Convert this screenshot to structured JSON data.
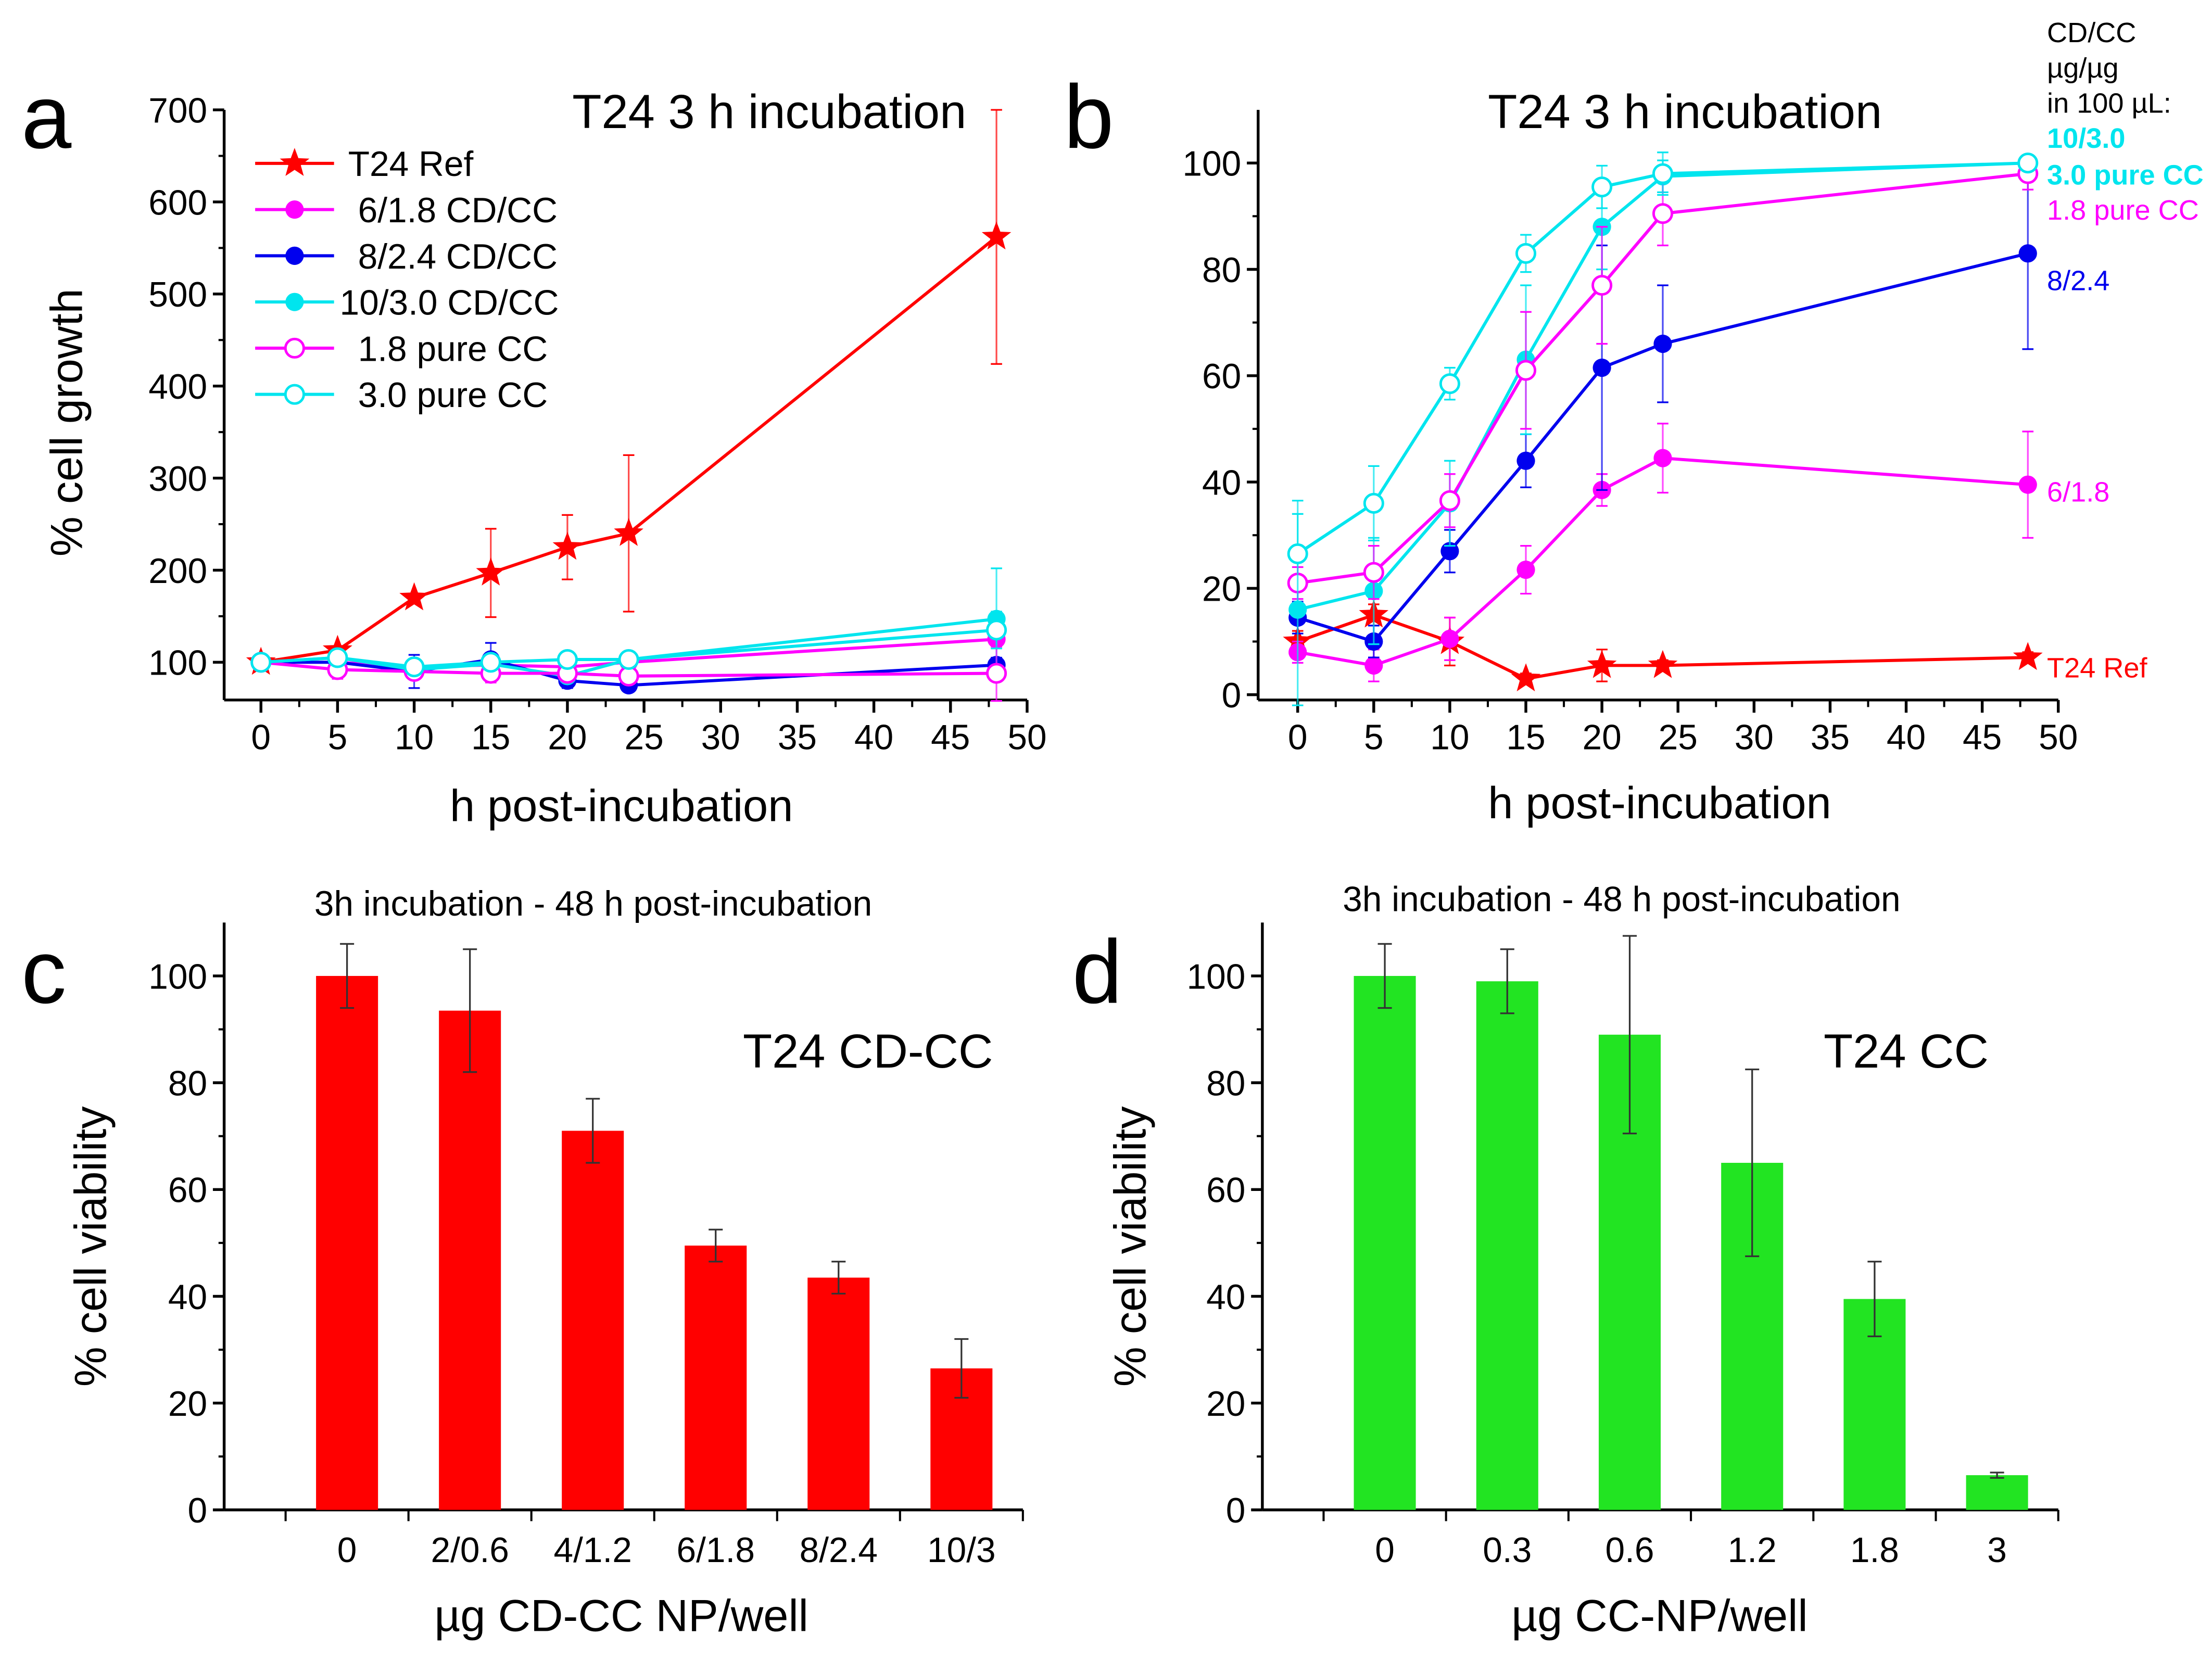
{
  "colors": {
    "ref": "#ff0000",
    "mag": "#ff00ff",
    "blue": "#0000ee",
    "cyan": "#00e5ee",
    "bar_red": "#ff0000",
    "bar_green": "#22e422"
  },
  "chart_data": [
    {
      "panel": "a",
      "type": "line",
      "title": "T24 3 h incubation",
      "xlabel": "h post-incubation",
      "ylabel": "% cell growth",
      "xlim": [
        -2.4,
        50
      ],
      "ylim": [
        59,
        700
      ],
      "xticks": [
        0,
        5,
        10,
        15,
        20,
        25,
        30,
        35,
        40,
        45,
        50
      ],
      "yticks": [
        100,
        200,
        300,
        400,
        500,
        600,
        700
      ],
      "legend": "top-left",
      "x": [
        0,
        5,
        10,
        15,
        20,
        24,
        48
      ],
      "series": [
        {
          "name": "T24 Ref",
          "color": "#ff0000",
          "marker": "star",
          "values": [
            100,
            113,
            170,
            197,
            225,
            240,
            562
          ],
          "errors": [
            0,
            0,
            0,
            48,
            35,
            85,
            138
          ]
        },
        {
          "name": "6/1.8 CD/CC",
          "color": "#ff00ff",
          "marker": "filled-circle",
          "values": [
            100,
            100,
            95,
            97,
            95,
            100,
            125
          ],
          "errors": [
            0,
            5,
            8,
            8,
            6,
            5,
            8
          ]
        },
        {
          "name": "8/2.4 CD/CC",
          "color": "#0000ee",
          "marker": "filled-circle",
          "values": [
            100,
            100,
            90,
            103,
            80,
            75,
            97
          ],
          "errors": [
            0,
            5,
            18,
            18,
            8,
            6,
            8
          ]
        },
        {
          "name": "10/3.0 CD/CC",
          "color": "#00e5ee",
          "marker": "filled-circle",
          "values": [
            100,
            105,
            92,
            98,
            85,
            103,
            147
          ],
          "errors": [
            0,
            6,
            8,
            10,
            6,
            6,
            55
          ]
        },
        {
          "name": "1.8 pure CC",
          "color": "#ff00ff",
          "marker": "open-circle",
          "values": [
            100,
            92,
            90,
            88,
            88,
            85,
            88
          ],
          "errors": [
            0,
            10,
            6,
            10,
            5,
            5,
            30
          ]
        },
        {
          "name": "3.0 pure CC",
          "color": "#00e5ee",
          "marker": "open-circle",
          "values": [
            100,
            105,
            95,
            100,
            103,
            103,
            135
          ],
          "errors": [
            0,
            6,
            6,
            8,
            8,
            6,
            20
          ]
        }
      ]
    },
    {
      "panel": "b",
      "type": "line",
      "title": "T24 3 h incubation",
      "xlabel": "h post-incubation",
      "ylabel": "",
      "xlim": [
        -2.6,
        50
      ],
      "ylim": [
        -1,
        110
      ],
      "xticks": [
        0,
        5,
        10,
        15,
        20,
        25,
        30,
        35,
        40,
        45,
        50
      ],
      "yticks": [
        0,
        20,
        40,
        60,
        80,
        100
      ],
      "legend_header": [
        "CD/CC",
        "µg/µg",
        "in 100 µL:"
      ],
      "x": [
        0,
        5,
        10,
        15,
        20,
        24,
        48
      ],
      "series": [
        {
          "name": "T24 Ref",
          "color": "#ff0000",
          "marker": "star",
          "values": [
            10,
            15,
            10,
            3,
            5.5,
            5.5,
            7
          ],
          "errors": [
            2,
            2,
            4.5,
            1,
            3,
            1,
            1
          ]
        },
        {
          "name": "6/1.8",
          "color": "#ff00ff",
          "marker": "filled-circle",
          "values": [
            8,
            5.5,
            10.5,
            23.5,
            38.5,
            44.5,
            39.5
          ],
          "errors": [
            2,
            3,
            4,
            4.5,
            3,
            6.5,
            10
          ]
        },
        {
          "name": "8/2.4",
          "color": "#0000ee",
          "marker": "filled-circle",
          "values": [
            14.5,
            10,
            27,
            44,
            61.5,
            66,
            83
          ],
          "errors": [
            3,
            3,
            4,
            5,
            23,
            11,
            18
          ]
        },
        {
          "name": "10/3.0",
          "color": "#00e5ee",
          "marker": "filled-circle",
          "values": [
            16,
            19.5,
            36,
            63,
            88,
            97.5,
            100
          ],
          "errors": [
            18,
            10,
            8,
            14,
            8,
            3,
            1
          ]
        },
        {
          "name": "1.8 pure CC",
          "color": "#ff00ff",
          "marker": "open-circle",
          "values": [
            21,
            23,
            36.5,
            61,
            77,
            90.5,
            98
          ],
          "errors": [
            3,
            5,
            5,
            11,
            11,
            6,
            3
          ]
        },
        {
          "name": "3.0 pure CC",
          "color": "#00e5ee",
          "marker": "open-circle",
          "values": [
            26.5,
            36,
            58.5,
            83,
            95.5,
            98,
            100
          ],
          "errors": [
            10,
            7,
            3,
            3.5,
            4,
            4,
            1
          ]
        }
      ]
    },
    {
      "panel": "c",
      "type": "bar",
      "title": "3h incubation - 48 h post-incubation",
      "annotation": "T24 CD-CC",
      "xlabel": "µg CD-CC NP/well",
      "ylabel": "% cell viability",
      "ylim": [
        0,
        110
      ],
      "yticks": [
        0,
        20,
        40,
        60,
        80,
        100
      ],
      "categories": [
        "0",
        "2/0.6",
        "4/1.2",
        "6/1.8",
        "8/2.4",
        "10/3"
      ],
      "values": [
        100,
        93.5,
        71,
        49.5,
        43.5,
        26.5
      ],
      "errors": [
        6,
        11.5,
        6,
        3,
        3,
        5.5
      ],
      "color": "#ff0000"
    },
    {
      "panel": "d",
      "type": "bar",
      "title": "3h incubation - 48 h post-incubation",
      "annotation": "T24 CC",
      "xlabel": "µg CC-NP/well",
      "ylabel": "% cell viability",
      "ylim": [
        0,
        110
      ],
      "yticks": [
        0,
        20,
        40,
        60,
        80,
        100
      ],
      "categories": [
        "0",
        "0.3",
        "0.6",
        "1.2",
        "1.8",
        "3"
      ],
      "values": [
        100,
        99,
        89,
        65,
        39.5,
        6.5
      ],
      "errors": [
        6,
        6,
        18.5,
        17.5,
        7,
        0.5
      ],
      "color": "#22e422"
    }
  ]
}
